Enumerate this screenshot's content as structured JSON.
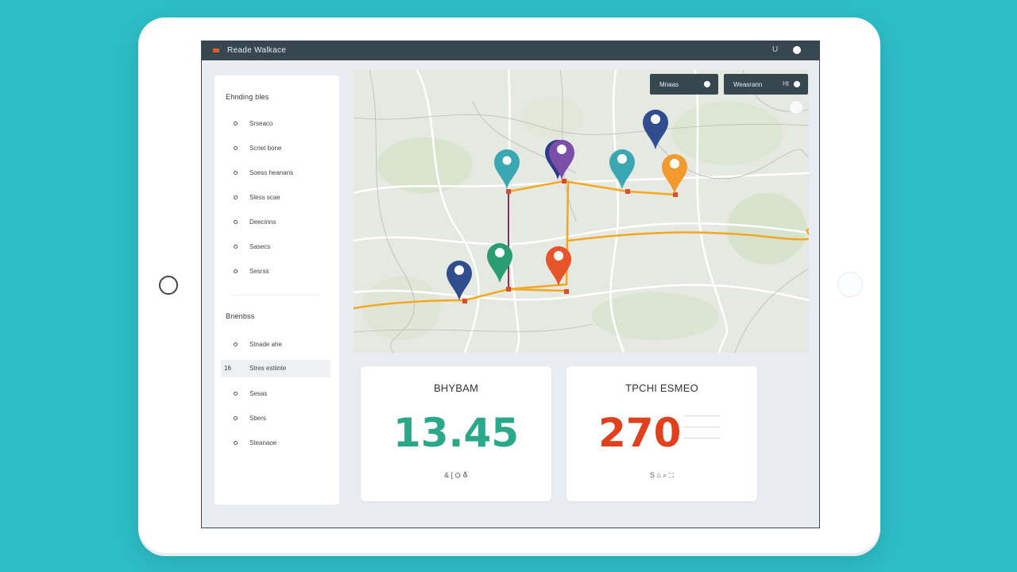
{
  "window": {
    "title": "Reade Walkace"
  },
  "titlebar": {
    "control_1": "U"
  },
  "sidebar": {
    "section_1_title": "Ehnding bles",
    "section_1_items": [
      {
        "label": "Srseaco"
      },
      {
        "label": "Scnet bone"
      },
      {
        "label": "Soess heanans"
      },
      {
        "label": "Sless scae"
      },
      {
        "label": "Deecinns"
      },
      {
        "label": "Sasecs"
      },
      {
        "label": "Sesrss"
      }
    ],
    "section_2_title": "Bnenbss",
    "section_2_items": [
      {
        "label": "Stnade ahe"
      },
      {
        "label": "Stres estiinte",
        "badge": "16",
        "active": true
      },
      {
        "label": "Sesas"
      },
      {
        "label": "Sbers"
      },
      {
        "label": "Steanaoe"
      }
    ]
  },
  "map": {
    "btn_1_label": "Mnaas",
    "btn_2_label": "Weasrann",
    "btn_2_icon": "Ht",
    "pins": [
      {
        "color": "#3aa7b3",
        "name": "teal"
      },
      {
        "color": "#2e3b8c",
        "name": "navy"
      },
      {
        "color": "#7b4fa8",
        "name": "purple"
      },
      {
        "color": "#3aa7b3",
        "name": "teal"
      },
      {
        "color": "#2f4d8f",
        "name": "blue"
      },
      {
        "color": "#f29a2e",
        "name": "orange"
      },
      {
        "color": "#2a9d73",
        "name": "green"
      },
      {
        "color": "#e8542a",
        "name": "red-orange"
      },
      {
        "color": "#2f4d8f",
        "name": "blue"
      }
    ],
    "route_color": "#f5a623",
    "route_alt_color": "#c0392b"
  },
  "cards": [
    {
      "title": "BHYBAM",
      "value": "13.45",
      "value_color": "#2aa889",
      "footer": "& [ ⛭ ⛢"
    },
    {
      "title": "TPCHI ESMEO",
      "value": "270",
      "value_color": "#e0401c",
      "footer": "S ⌂ ⌕ ⛶"
    }
  ]
}
